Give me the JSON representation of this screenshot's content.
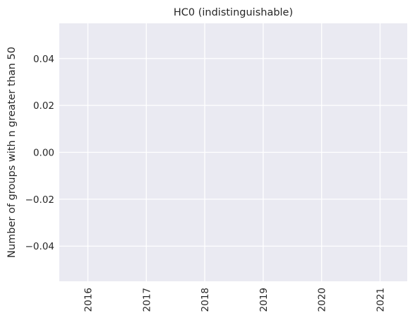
{
  "chart_data": {
    "type": "line",
    "title": "HC0 (indistinguishable)",
    "xlabel": "",
    "ylabel": "Number of groups with n greater than 50",
    "x_ticks": [
      "2016",
      "2017",
      "2018",
      "2019",
      "2020",
      "2021"
    ],
    "y_ticks": [
      0.04,
      0.02,
      0.0,
      -0.02,
      -0.04
    ],
    "y_tick_labels": [
      "0.04",
      "0.02",
      "0.00",
      "−0.02",
      "−0.04"
    ],
    "ylim": [
      -0.055,
      0.055
    ],
    "xlim": [
      "2015",
      "2021"
    ],
    "series": [],
    "grid": true,
    "x_tick_rotation": "vertical"
  }
}
